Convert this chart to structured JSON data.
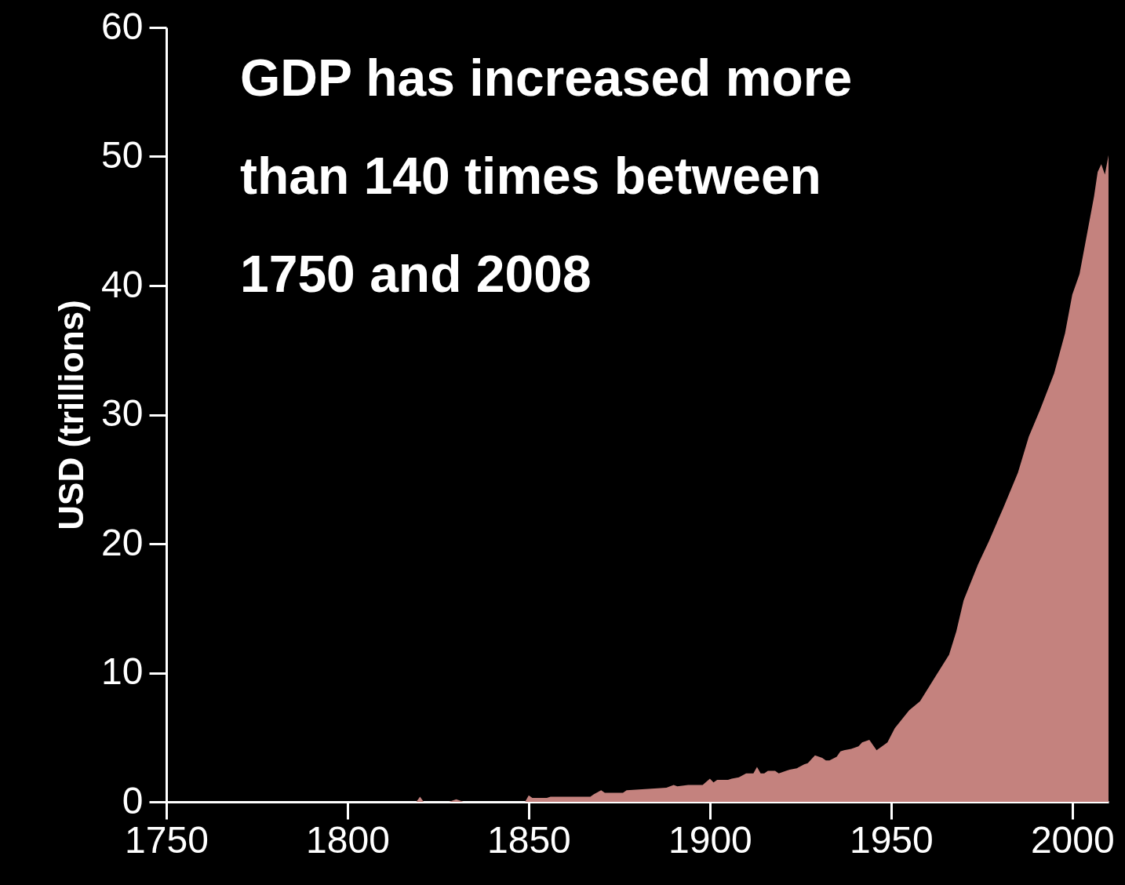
{
  "chart_data": {
    "type": "area",
    "annotations": [
      "GDP has increased more than 140 times between 1750 and 2008"
    ],
    "ylabel": "USD (trillions)",
    "x": [
      1750,
      1819,
      1820,
      1821,
      1828,
      1830,
      1832,
      1849,
      1850,
      1851,
      1855,
      1856,
      1867,
      1868,
      1870,
      1871,
      1876,
      1877,
      1883,
      1888,
      1890,
      1891,
      1894,
      1898,
      1900,
      1901,
      1902,
      1905,
      1906,
      1908,
      1910,
      1912,
      1913,
      1914,
      1915,
      1916,
      1918,
      1919,
      1921,
      1922,
      1924,
      1926,
      1927,
      1929,
      1931,
      1932,
      1933,
      1935,
      1936,
      1937,
      1939,
      1941,
      1942,
      1944,
      1946,
      1949,
      1951,
      1953,
      1955,
      1958,
      1962,
      1966,
      1968,
      1970,
      1974,
      1977,
      1981,
      1985,
      1988,
      1991,
      1995,
      1998,
      2000,
      2002,
      2006,
      2007,
      2008,
      2009,
      2010
    ],
    "series": [
      {
        "color": "#c4827e",
        "values": [
          0,
          0,
          0.4,
          0,
          0,
          0.2,
          0,
          0,
          0.5,
          0.3,
          0.3,
          0.4,
          0.4,
          0.6,
          0.9,
          0.7,
          0.7,
          0.9,
          1.0,
          1.1,
          1.3,
          1.2,
          1.3,
          1.3,
          1.8,
          1.5,
          1.7,
          1.7,
          1.8,
          1.9,
          2.2,
          2.2,
          2.7,
          2.2,
          2.2,
          2.4,
          2.4,
          2.2,
          2.4,
          2.5,
          2.6,
          2.9,
          3.0,
          3.6,
          3.4,
          3.2,
          3.2,
          3.5,
          3.9,
          4.0,
          4.1,
          4.3,
          4.6,
          4.8,
          4.0,
          4.6,
          5.7,
          6.4,
          7.1,
          7.8,
          9.6,
          11.4,
          13.2,
          15.6,
          18.4,
          20.2,
          22.8,
          25.5,
          28.3,
          30.3,
          33.2,
          36.3,
          39.3,
          40.9,
          46.9,
          48.8,
          49.4,
          48.6,
          50.1
        ]
      }
    ],
    "xlim": [
      1750,
      2010
    ],
    "xticks": [
      1750,
      1800,
      1850,
      1900,
      1950,
      2000
    ],
    "ylim": [
      0,
      60
    ],
    "yticks": [
      0,
      10,
      20,
      30,
      40,
      50,
      60
    ],
    "grid": false
  }
}
